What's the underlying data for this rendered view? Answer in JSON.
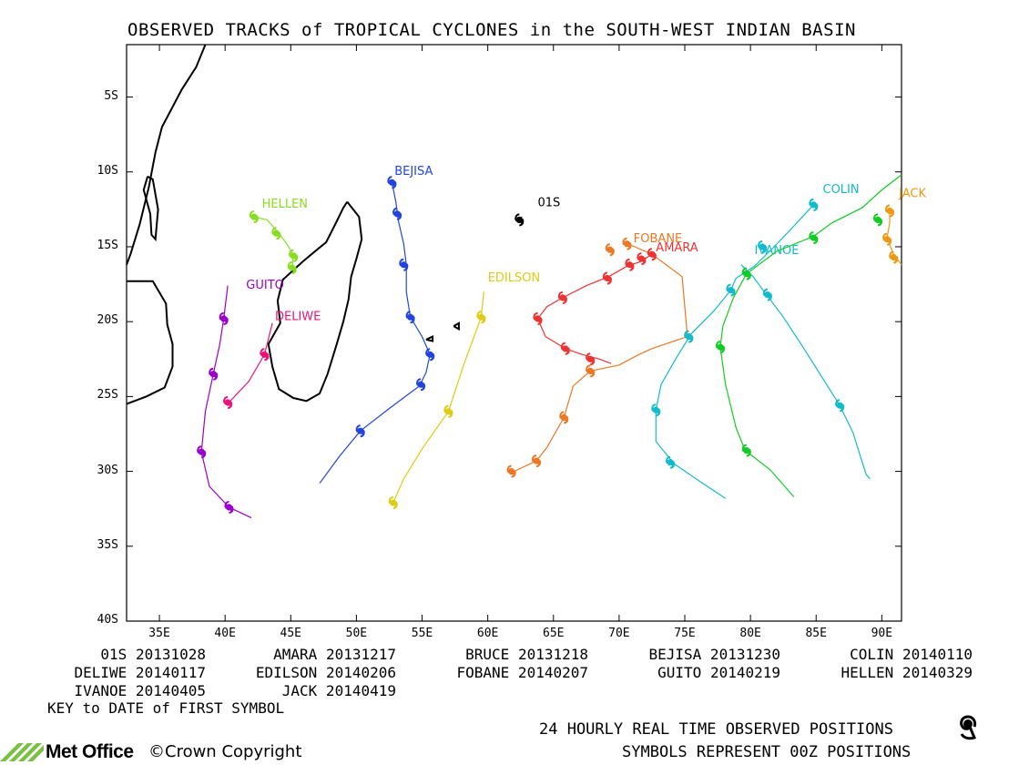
{
  "title": "OBSERVED TRACKS of TROPICAL CYCLONES in the SOUTH-WEST INDIAN BASIN",
  "map": {
    "lon_range": [
      32.5,
      91.5
    ],
    "lat_range": [
      -40,
      -1.5
    ],
    "lat_ticks": [
      {
        "lat": -5,
        "label": "5S"
      },
      {
        "lat": -10,
        "label": "10S"
      },
      {
        "lat": -15,
        "label": "15S"
      },
      {
        "lat": -20,
        "label": "20S"
      },
      {
        "lat": -25,
        "label": "25S"
      },
      {
        "lat": -30,
        "label": "30S"
      },
      {
        "lat": -35,
        "label": "35S"
      },
      {
        "lat": -40,
        "label": "40S"
      }
    ],
    "lon_ticks": [
      {
        "lon": 35,
        "label": "35E"
      },
      {
        "lon": 40,
        "label": "40E"
      },
      {
        "lon": 45,
        "label": "45E"
      },
      {
        "lon": 50,
        "label": "50E"
      },
      {
        "lon": 55,
        "label": "55E"
      },
      {
        "lon": 60,
        "label": "60E"
      },
      {
        "lon": 65,
        "label": "65E"
      },
      {
        "lon": 70,
        "label": "70E"
      },
      {
        "lon": 75,
        "label": "75E"
      },
      {
        "lon": 80,
        "label": "80E"
      },
      {
        "lon": 85,
        "label": "85E"
      },
      {
        "lon": 90,
        "label": "90E"
      }
    ],
    "africa_coast": [
      [
        38.5,
        -1.5
      ],
      [
        37.8,
        -3
      ],
      [
        36.7,
        -4.5
      ],
      [
        35.8,
        -6
      ],
      [
        35.2,
        -7
      ],
      [
        34.7,
        -8.7
      ],
      [
        34.2,
        -11
      ],
      [
        33.5,
        -13.5
      ],
      [
        32.8,
        -15.5
      ],
      [
        32.5,
        -16.2
      ]
    ],
    "africa_coast2": [
      [
        32.5,
        -17.3
      ],
      [
        34.5,
        -17.3
      ],
      [
        35.5,
        -18.8
      ],
      [
        35.6,
        -20.2
      ],
      [
        36,
        -21.5
      ],
      [
        36,
        -23
      ],
      [
        35.4,
        -24.4
      ],
      [
        34,
        -25
      ],
      [
        32.5,
        -25.5
      ]
    ],
    "madagascar": [
      [
        49.3,
        -12
      ],
      [
        50.2,
        -13
      ],
      [
        50.4,
        -14.5
      ],
      [
        50,
        -15.8
      ],
      [
        49.6,
        -17
      ],
      [
        49.4,
        -18.5
      ],
      [
        49,
        -20
      ],
      [
        48.5,
        -21.5
      ],
      [
        47.8,
        -23.5
      ],
      [
        47.2,
        -24.8
      ],
      [
        46.2,
        -25.3
      ],
      [
        45.2,
        -25.1
      ],
      [
        44.1,
        -24.5
      ],
      [
        43.6,
        -23
      ],
      [
        43.3,
        -21.5
      ],
      [
        44.2,
        -20.1
      ],
      [
        44,
        -18.6
      ],
      [
        44.4,
        -17.2
      ],
      [
        45.9,
        -16
      ],
      [
        47,
        -15.2
      ],
      [
        47.7,
        -14.7
      ],
      [
        48.5,
        -13.3
      ],
      [
        49,
        -12.4
      ],
      [
        49.3,
        -12
      ]
    ],
    "small_islands": [
      [
        [
          34.1,
          -10.3
        ],
        [
          34.5,
          -10.5
        ],
        [
          34.9,
          -12.5
        ],
        [
          34.7,
          -14.5
        ],
        [
          34.4,
          -14.2
        ],
        [
          34.3,
          -12.8
        ],
        [
          33.8,
          -11.2
        ],
        [
          34.1,
          -10.3
        ]
      ],
      [
        [
          57.4,
          -20.3
        ],
        [
          57.8,
          -20.1
        ],
        [
          57.8,
          -20.5
        ],
        [
          57.4,
          -20.3
        ]
      ],
      [
        [
          55.3,
          -21.2
        ],
        [
          55.8,
          -21
        ],
        [
          55.8,
          -21.3
        ],
        [
          55.3,
          -21.2
        ]
      ]
    ],
    "storms": [
      {
        "name": "01S",
        "color": "#000000",
        "label_pos": [
          63.8,
          -12.3
        ],
        "track": [
          [
            62.6,
            -13
          ],
          [
            62.3,
            -13.4
          ]
        ],
        "symbols": [
          [
            62.4,
            -13.2
          ]
        ]
      },
      {
        "name": "HELLEN",
        "color": "#88dd22",
        "label_pos": [
          42.8,
          -12.4
        ],
        "track": [
          [
            42.2,
            -13
          ],
          [
            43.2,
            -13.2
          ],
          [
            44,
            -14
          ],
          [
            44.7,
            -14.8
          ],
          [
            45.2,
            -15.6
          ],
          [
            45.1,
            -16.5
          ]
        ],
        "symbols": [
          [
            42.2,
            -13
          ],
          [
            43.9,
            -14.1
          ],
          [
            45.2,
            -15.6
          ],
          [
            45.1,
            -16.4
          ]
        ]
      },
      {
        "name": "GUITO",
        "color": "#9900cc",
        "label_pos": [
          41.6,
          -17.8
        ],
        "track": [
          [
            40.2,
            -17.6
          ],
          [
            39.9,
            -19.8
          ],
          [
            39.6,
            -21.5
          ],
          [
            39.1,
            -23.5
          ],
          [
            38.5,
            -26
          ],
          [
            38.2,
            -28.7
          ],
          [
            38.8,
            -31
          ],
          [
            40.3,
            -32.4
          ],
          [
            42,
            -33.1
          ]
        ],
        "symbols": [
          [
            39.9,
            -19.8
          ],
          [
            39.1,
            -23.5
          ],
          [
            38.2,
            -28.7
          ],
          [
            40.3,
            -32.4
          ]
        ]
      },
      {
        "name": "DELIWE",
        "color": "#ee1177",
        "label_pos": [
          43.8,
          -19.9
        ],
        "track": [
          [
            43.6,
            -20.1
          ],
          [
            43,
            -22.2
          ],
          [
            41.8,
            -24
          ],
          [
            40.4,
            -25.3
          ],
          [
            40.2,
            -25.6
          ]
        ],
        "symbols": [
          [
            43,
            -22.2
          ],
          [
            40.2,
            -25.4
          ]
        ]
      },
      {
        "name": "BEJISA",
        "color": "#2244dd",
        "label_pos": [
          52.9,
          -10.2
        ],
        "track": [
          [
            52.7,
            -10.7
          ],
          [
            53,
            -12
          ],
          [
            53.2,
            -13.3
          ],
          [
            53.6,
            -14.8
          ],
          [
            53.8,
            -16.2
          ],
          [
            53.8,
            -18
          ],
          [
            54.1,
            -19.7
          ],
          [
            55,
            -21
          ],
          [
            55.6,
            -22.2
          ],
          [
            55.3,
            -23.4
          ],
          [
            54.8,
            -24.3
          ],
          [
            52.5,
            -25.8
          ],
          [
            50.3,
            -27.3
          ],
          [
            48.7,
            -29
          ],
          [
            47.2,
            -30.8
          ]
        ],
        "symbols": [
          [
            52.7,
            -10.7
          ],
          [
            53.1,
            -12.8
          ],
          [
            53.6,
            -16.2
          ],
          [
            54.1,
            -19.7
          ],
          [
            55.6,
            -22.2
          ],
          [
            54.9,
            -24.2
          ],
          [
            50.3,
            -27.3
          ]
        ]
      },
      {
        "name": "EDILSON",
        "color": "#ddcc11",
        "label_pos": [
          60,
          -17.3
        ],
        "track": [
          [
            59.7,
            -18
          ],
          [
            59.5,
            -19.7
          ],
          [
            58.2,
            -22.8
          ],
          [
            57,
            -26
          ],
          [
            55,
            -28.5
          ],
          [
            53.6,
            -30.5
          ],
          [
            52.8,
            -32.1
          ]
        ],
        "symbols": [
          [
            59.5,
            -19.7
          ],
          [
            57,
            -26
          ],
          [
            52.8,
            -32.1
          ]
        ]
      },
      {
        "name": "FOBANE",
        "color": "#ee7722",
        "label_pos": [
          71.1,
          -14.7
        ],
        "track": [
          [
            70.6,
            -14.8
          ],
          [
            71.2,
            -15
          ],
          [
            72.5,
            -15.5
          ],
          [
            74.8,
            -17
          ],
          [
            75.2,
            -21
          ],
          [
            72.5,
            -21.8
          ],
          [
            71.5,
            -22.2
          ],
          [
            70,
            -22.9
          ],
          [
            67.8,
            -23.3
          ],
          [
            66.5,
            -24.3
          ],
          [
            65.8,
            -26.4
          ],
          [
            64.5,
            -28.4
          ],
          [
            63.7,
            -29.3
          ],
          [
            62,
            -30
          ],
          [
            61.7,
            -30.2
          ]
        ],
        "symbols": [
          [
            69.3,
            -15.2
          ],
          [
            70.6,
            -14.8
          ],
          [
            75.3,
            -21
          ],
          [
            67.8,
            -23.3
          ],
          [
            65.8,
            -26.4
          ],
          [
            63.7,
            -29.3
          ],
          [
            61.8,
            -30
          ]
        ]
      },
      {
        "name": "AMARA",
        "color": "#ee3333",
        "label_pos": [
          72.8,
          -15.3
        ],
        "track": [
          [
            72.5,
            -15.5
          ],
          [
            71.6,
            -16
          ],
          [
            70.6,
            -16.3
          ],
          [
            69.2,
            -17
          ],
          [
            67.5,
            -17.6
          ],
          [
            65.7,
            -18.4
          ],
          [
            64.5,
            -19
          ],
          [
            63.8,
            -19.8
          ],
          [
            64.4,
            -21
          ],
          [
            65.9,
            -21.8
          ],
          [
            67.2,
            -22.2
          ],
          [
            68.5,
            -22.5
          ],
          [
            69.4,
            -22.8
          ]
        ],
        "symbols": [
          [
            72.5,
            -15.5
          ],
          [
            71.7,
            -15.8
          ],
          [
            70.8,
            -16.2
          ],
          [
            69.1,
            -17.1
          ],
          [
            65.7,
            -18.4
          ],
          [
            63.8,
            -19.8
          ],
          [
            65.9,
            -21.8
          ],
          [
            67.8,
            -22.5
          ]
        ]
      },
      {
        "name": "COLIN",
        "color": "#11bbcc",
        "label_pos": [
          85.5,
          -11.4
        ],
        "track": [
          [
            84.8,
            -12.2
          ],
          [
            83,
            -13.9
          ],
          [
            81.8,
            -15
          ],
          [
            80.3,
            -16.3
          ],
          [
            78.9,
            -17.1
          ],
          [
            78.5,
            -17.9
          ],
          [
            77.2,
            -19.3
          ],
          [
            75.5,
            -20.8
          ],
          [
            74.3,
            -22.5
          ],
          [
            73.2,
            -24.2
          ],
          [
            72.8,
            -25.9
          ],
          [
            72.8,
            -28
          ],
          [
            74.2,
            -29.5
          ],
          [
            76.2,
            -30.7
          ],
          [
            78.1,
            -31.8
          ]
        ],
        "symbols": [
          [
            84.8,
            -12.2
          ],
          [
            80.9,
            -15
          ],
          [
            78.5,
            -17.9
          ],
          [
            75.3,
            -21
          ],
          [
            72.8,
            -25.9
          ],
          [
            73.9,
            -29.4
          ]
        ]
      },
      {
        "name": "IVANOE",
        "color": "#11bbcc",
        "label_pos": [
          80.3,
          -15.5
        ],
        "track": [
          [
            79.3,
            -16.2
          ],
          [
            80.2,
            -17
          ],
          [
            81.3,
            -18.3
          ],
          [
            82.5,
            -19.7
          ],
          [
            84,
            -21.7
          ],
          [
            85.5,
            -23.8
          ],
          [
            86.8,
            -25.6
          ],
          [
            87.8,
            -27.4
          ],
          [
            88.8,
            -30.2
          ],
          [
            89.1,
            -30.5
          ]
        ],
        "symbols": [
          [
            79.7,
            -16.8
          ],
          [
            81.3,
            -18.2
          ],
          [
            86.8,
            -25.6
          ]
        ]
      },
      {
        "name": "JACK",
        "color": "#ee9911",
        "label_pos": [
          91.3,
          -11.7
        ],
        "track": [
          [
            90.6,
            -12.4
          ],
          [
            90.6,
            -13.4
          ],
          [
            90.4,
            -14.4
          ],
          [
            90.9,
            -15.5
          ],
          [
            91.5,
            -16.2
          ]
        ],
        "symbols": [
          [
            90.6,
            -12.6
          ],
          [
            90.4,
            -14.5
          ],
          [
            90.9,
            -15.7
          ]
        ]
      },
      {
        "name": "",
        "color": "#11cc22",
        "label_pos": [
          0,
          0
        ],
        "track": [
          [
            91.5,
            -10.2
          ],
          [
            90,
            -11.2
          ],
          [
            88.5,
            -12.4
          ],
          [
            86.2,
            -13.4
          ],
          [
            84.8,
            -14.3
          ],
          [
            82,
            -15.3
          ],
          [
            79.7,
            -16.8
          ],
          [
            78.7,
            -18.4
          ],
          [
            77.9,
            -20.3
          ],
          [
            77.7,
            -21.7
          ],
          [
            78.1,
            -24.2
          ],
          [
            78.9,
            -27.1
          ],
          [
            79.6,
            -28.6
          ],
          [
            81.5,
            -29.9
          ],
          [
            83.3,
            -31.7
          ]
        ],
        "symbols": [
          [
            89.7,
            -13.2
          ],
          [
            84.8,
            -14.4
          ],
          [
            79.7,
            -16.8
          ],
          [
            77.7,
            -21.7
          ],
          [
            79.7,
            -28.6
          ]
        ]
      }
    ]
  },
  "key": {
    "rows": [
      [
        "01S 20131028",
        "AMARA 20131217",
        "BRUCE 20131218",
        "BEJISA 20131230",
        "COLIN 20140110"
      ],
      [
        "DELIWE 20140117",
        "EDILSON 20140206",
        "FOBANE 20140207",
        "GUITO 20140219",
        "HELLEN 20140329"
      ],
      [
        "IVANOE 20140405",
        "JACK 20140419",
        "",
        "",
        ""
      ]
    ],
    "caption": "KEY to DATE of FIRST SYMBOL"
  },
  "footer": {
    "line1": "24 HOURLY REAL TIME OBSERVED POSITIONS",
    "line2": "SYMBOLS REPRESENT 00Z POSITIONS",
    "brand": "Met Office",
    "copyright": "Crown Copyright",
    "copyright_symbol": "©"
  }
}
